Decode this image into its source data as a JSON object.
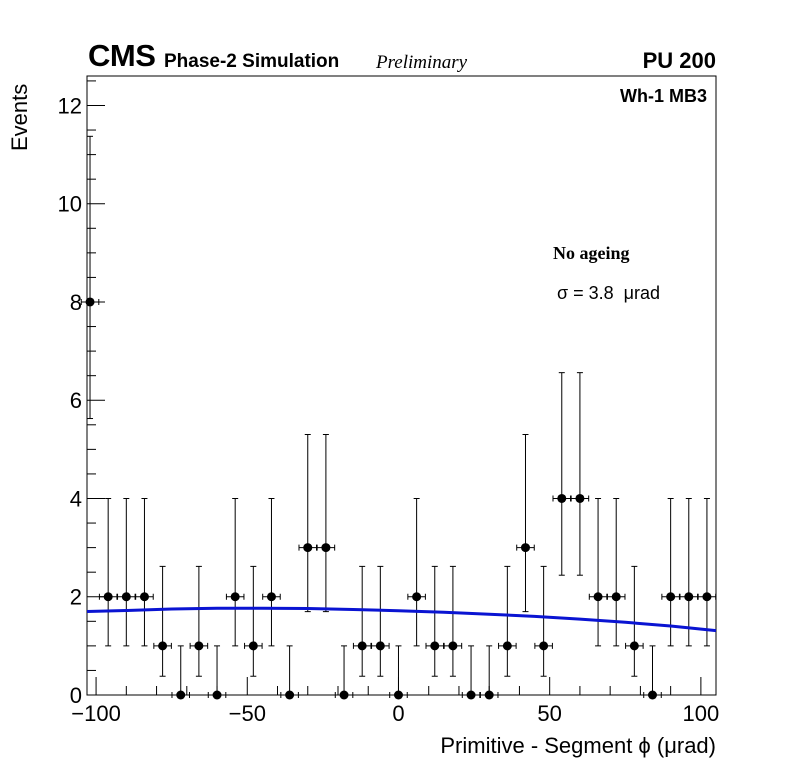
{
  "header": {
    "experiment": "CMS",
    "subtitle": "Phase-2 Simulation",
    "status": "Preliminary",
    "pileup": "PU 200"
  },
  "chart_data": {
    "type": "scatter",
    "title": "",
    "xlabel": "Primitive - Segment ϕ (μrad)",
    "ylabel": "Events",
    "xlim": [
      -103,
      105
    ],
    "ylim": [
      0,
      12.6
    ],
    "x_ticks": [
      -100,
      -50,
      0,
      50,
      100
    ],
    "x_tick_labels": [
      "−100",
      "−50",
      "0",
      "50",
      "100"
    ],
    "y_ticks": [
      0,
      2,
      4,
      6,
      8,
      10,
      12
    ],
    "y_tick_labels": [
      "0",
      "2",
      "4",
      "6",
      "8",
      "10",
      "12"
    ],
    "grid": false,
    "annotations": {
      "station": "Wh-1 MB3",
      "condition": "No ageing",
      "fit_result": "σ = 3.8  μrad"
    },
    "series": [
      {
        "name": "Simulation",
        "style": "points with error bars",
        "color": "#000000",
        "bin_half_width": 2.9,
        "x": [
          -102,
          -96,
          -90,
          -84,
          -78,
          -72,
          -66,
          -60,
          -54,
          -48,
          -42,
          -36,
          -30,
          -24,
          -18,
          -12,
          -6,
          0,
          6,
          12,
          18,
          24,
          30,
          36,
          42,
          48,
          54,
          60,
          66,
          72,
          78,
          84,
          90,
          96,
          102
        ],
        "y": [
          8,
          2,
          2,
          2,
          1,
          0,
          1,
          0,
          2,
          1,
          2,
          0,
          3,
          3,
          0,
          1,
          1,
          0,
          2,
          1,
          1,
          0,
          0,
          1,
          3,
          1,
          4,
          4,
          2,
          2,
          1,
          0,
          2,
          2,
          2
        ]
      },
      {
        "name": "Fit",
        "style": "line",
        "color": "#0a14d2",
        "x": [
          -103,
          -90,
          -75,
          -60,
          -45,
          -30,
          -15,
          0,
          15,
          30,
          45,
          60,
          75,
          90,
          105
        ],
        "y": [
          1.7,
          1.72,
          1.75,
          1.765,
          1.765,
          1.76,
          1.74,
          1.715,
          1.685,
          1.645,
          1.6,
          1.545,
          1.48,
          1.405,
          1.31
        ]
      }
    ]
  }
}
